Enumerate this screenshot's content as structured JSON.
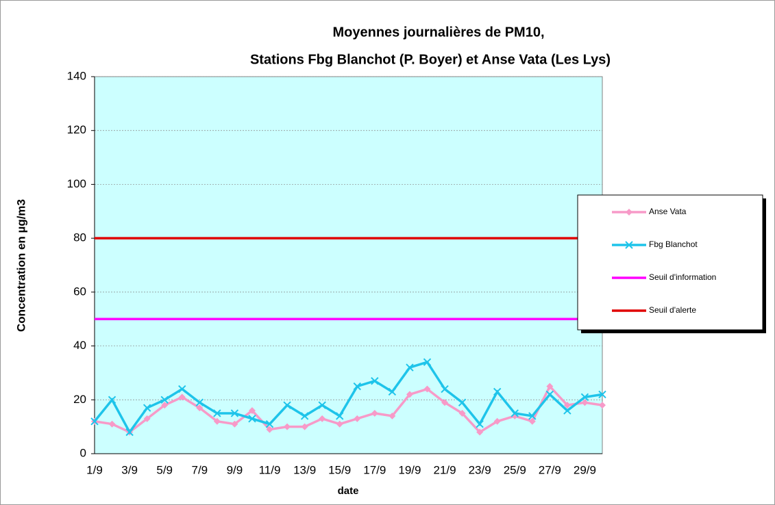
{
  "chart_data": {
    "type": "line",
    "title": "Moyennes journalières de PM10,",
    "subtitle": "Stations Fbg Blanchot (P. Boyer) et Anse Vata (Les Lys)",
    "x_label": "date",
    "y_label": "Concentration en µg/m3",
    "categories": [
      "1/9",
      null,
      "3/9",
      null,
      "5/9",
      null,
      "7/9",
      null,
      "9/9",
      null,
      "11/9",
      null,
      "13/9",
      null,
      "15/9",
      null,
      "17/9",
      null,
      "19/9",
      null,
      "21/9",
      null,
      "23/9",
      null,
      "25/9",
      null,
      "27/9",
      null,
      "29/9",
      null
    ],
    "series": [
      {
        "name": "Anse Vata",
        "color": "#f79ac8",
        "marker": "diamond",
        "values": [
          12,
          11,
          8,
          13,
          18,
          21,
          17,
          12,
          11,
          16,
          9,
          10,
          10,
          13,
          11,
          13,
          15,
          14,
          22,
          24,
          19,
          15,
          8,
          12,
          14,
          12,
          25,
          18,
          19,
          18
        ]
      },
      {
        "name": "Fbg Blanchot",
        "color": "#1ec4ea",
        "marker": "x",
        "values": [
          12,
          20,
          8,
          17,
          20,
          24,
          19,
          15,
          15,
          13,
          11,
          18,
          14,
          18,
          14,
          25,
          27,
          23,
          32,
          34,
          24,
          19,
          11,
          23,
          15,
          14,
          22,
          16,
          21,
          22
        ]
      },
      {
        "name": "Seuil d'information",
        "color": "#ff00ff",
        "marker": null,
        "values": [
          50,
          50,
          50,
          50,
          50,
          50,
          50,
          50,
          50,
          50,
          50,
          50,
          50,
          50,
          50,
          50,
          50,
          50,
          50,
          50,
          50,
          50,
          50,
          50,
          50,
          50,
          50,
          50,
          50,
          50
        ]
      },
      {
        "name": "Seuil d'alerte",
        "color": "#e00000",
        "marker": null,
        "values": [
          80,
          80,
          80,
          80,
          80,
          80,
          80,
          80,
          80,
          80,
          80,
          80,
          80,
          80,
          80,
          80,
          80,
          80,
          80,
          80,
          80,
          80,
          80,
          80,
          80,
          80,
          80,
          80,
          80,
          80
        ]
      }
    ],
    "ylim": [
      0,
      140
    ],
    "yticks": [
      0,
      20,
      40,
      60,
      80,
      100,
      120,
      140
    ],
    "grid": true,
    "legend_position": "right",
    "plot_background": "#ccffff"
  }
}
